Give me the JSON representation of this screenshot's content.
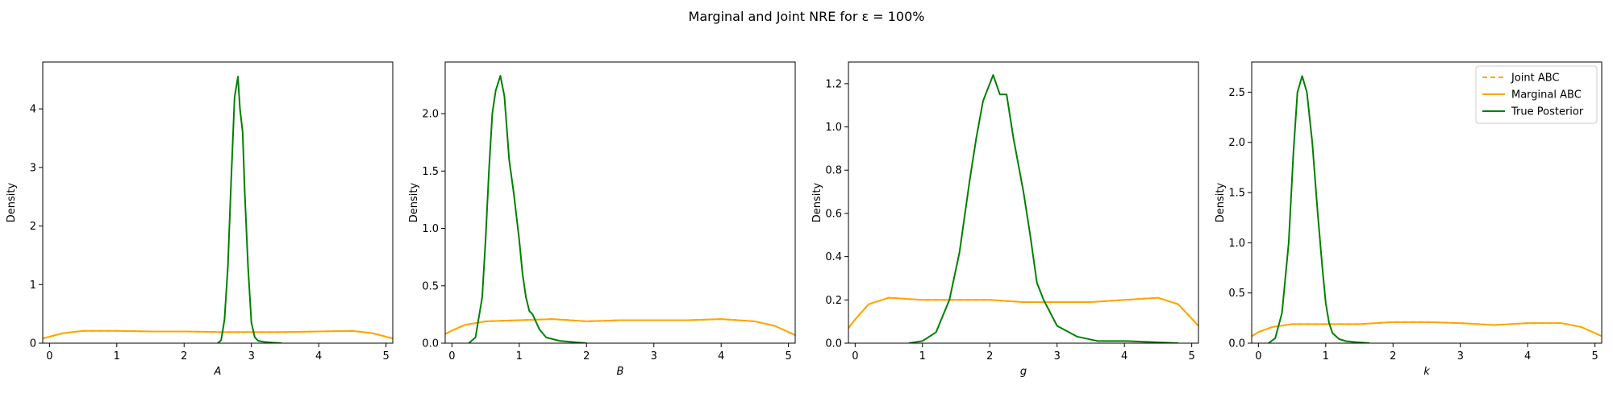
{
  "figure": {
    "title": "Marginal and Joint NRE for ε =  100%"
  },
  "legend": {
    "placement": "top-right of last panel",
    "entries": [
      {
        "label": "Joint ABC",
        "color": "#ffa500",
        "style": "dashed"
      },
      {
        "label": "Marginal ABC",
        "color": "#ffa500",
        "style": "solid"
      },
      {
        "label": "True Posterior",
        "color": "#008000",
        "style": "solid"
      }
    ]
  },
  "chart_data": [
    {
      "type": "line",
      "xlabel": "A",
      "ylabel": "Density",
      "xlim": [
        -0.1,
        5.1
      ],
      "ylim": [
        0,
        4.8
      ],
      "xticks": [
        "0",
        "1",
        "2",
        "3",
        "4",
        "5"
      ],
      "yticks": [
        "0",
        "1",
        "2",
        "3",
        "4"
      ],
      "series": [
        {
          "name": "Marginal ABC",
          "color": "#ffa500",
          "x": [
            -0.1,
            0,
            0.2,
            0.5,
            1,
            1.5,
            2,
            2.5,
            3,
            3.5,
            4,
            4.5,
            4.8,
            5.1
          ],
          "y": [
            0.08,
            0.11,
            0.17,
            0.21,
            0.21,
            0.2,
            0.2,
            0.19,
            0.19,
            0.19,
            0.2,
            0.21,
            0.17,
            0.08
          ]
        },
        {
          "name": "Joint ABC",
          "color": "#ffa500",
          "dashed": true,
          "x": [
            -0.1,
            0,
            0.2,
            0.5,
            1,
            1.5,
            2,
            2.5,
            3,
            3.5,
            4,
            4.5,
            4.8,
            5.1
          ],
          "y": [
            0.08,
            0.11,
            0.17,
            0.21,
            0.21,
            0.2,
            0.2,
            0.19,
            0.19,
            0.19,
            0.2,
            0.21,
            0.17,
            0.08
          ]
        },
        {
          "name": "True Posterior",
          "color": "#008000",
          "x": [
            2.5,
            2.55,
            2.6,
            2.65,
            2.7,
            2.75,
            2.8,
            2.83,
            2.87,
            2.9,
            2.95,
            3.0,
            3.05,
            3.1,
            3.2,
            3.3,
            3.45
          ],
          "y": [
            0,
            0.05,
            0.4,
            1.3,
            2.8,
            4.2,
            4.55,
            4.0,
            3.6,
            2.6,
            1.3,
            0.35,
            0.1,
            0.04,
            0.02,
            0.01,
            0
          ]
        }
      ]
    },
    {
      "type": "line",
      "xlabel": "B",
      "ylabel": "Density",
      "xlim": [
        -0.1,
        5.1
      ],
      "ylim": [
        0,
        2.45
      ],
      "xticks": [
        "0",
        "1",
        "2",
        "3",
        "4",
        "5"
      ],
      "yticks": [
        "0.0",
        "0.5",
        "1.0",
        "1.5",
        "2.0"
      ],
      "series": [
        {
          "name": "Marginal ABC",
          "color": "#ffa500",
          "x": [
            -0.1,
            0,
            0.2,
            0.5,
            1,
            1.5,
            2,
            2.5,
            3,
            3.5,
            4,
            4.5,
            4.8,
            5.1
          ],
          "y": [
            0.08,
            0.11,
            0.16,
            0.19,
            0.2,
            0.21,
            0.19,
            0.2,
            0.2,
            0.2,
            0.21,
            0.19,
            0.15,
            0.07
          ]
        },
        {
          "name": "Joint ABC",
          "color": "#ffa500",
          "dashed": true,
          "x": [
            -0.1,
            0,
            0.2,
            0.5,
            1,
            1.5,
            2,
            2.5,
            3,
            3.5,
            4,
            4.5,
            4.8,
            5.1
          ],
          "y": [
            0.08,
            0.11,
            0.16,
            0.19,
            0.2,
            0.21,
            0.19,
            0.2,
            0.2,
            0.2,
            0.21,
            0.19,
            0.15,
            0.07
          ]
        },
        {
          "name": "True Posterior",
          "color": "#008000",
          "x": [
            0.25,
            0.35,
            0.45,
            0.5,
            0.55,
            0.6,
            0.65,
            0.72,
            0.78,
            0.85,
            0.92,
            1.0,
            1.05,
            1.1,
            1.15,
            1.2,
            1.3,
            1.4,
            1.6,
            1.8,
            2.0
          ],
          "y": [
            0,
            0.05,
            0.4,
            0.9,
            1.5,
            2.0,
            2.2,
            2.33,
            2.15,
            1.6,
            1.3,
            0.9,
            0.6,
            0.4,
            0.28,
            0.25,
            0.12,
            0.05,
            0.02,
            0.01,
            0
          ]
        }
      ]
    },
    {
      "type": "line",
      "xlabel": "g",
      "ylabel": "Density",
      "xlim": [
        -0.1,
        5.1
      ],
      "ylim": [
        0,
        1.3
      ],
      "xticks": [
        "0",
        "1",
        "2",
        "3",
        "4",
        "5"
      ],
      "yticks": [
        "0.0",
        "0.2",
        "0.4",
        "0.6",
        "0.8",
        "1.0",
        "1.2"
      ],
      "series": [
        {
          "name": "Marginal ABC",
          "color": "#ffa500",
          "x": [
            -0.1,
            0,
            0.2,
            0.5,
            1,
            1.5,
            2,
            2.5,
            3,
            3.5,
            4,
            4.5,
            4.8,
            5.1
          ],
          "y": [
            0.07,
            0.11,
            0.18,
            0.21,
            0.2,
            0.2,
            0.2,
            0.19,
            0.19,
            0.19,
            0.2,
            0.21,
            0.18,
            0.08
          ]
        },
        {
          "name": "Joint ABC",
          "color": "#ffa500",
          "dashed": true,
          "x": [
            -0.1,
            0,
            0.2,
            0.5,
            1,
            1.5,
            2,
            2.5,
            3,
            3.5,
            4,
            4.5,
            4.8,
            5.1
          ],
          "y": [
            0.07,
            0.11,
            0.18,
            0.21,
            0.2,
            0.2,
            0.2,
            0.19,
            0.19,
            0.19,
            0.2,
            0.21,
            0.18,
            0.08
          ]
        },
        {
          "name": "True Posterior",
          "color": "#008000",
          "x": [
            0.8,
            1.0,
            1.2,
            1.4,
            1.55,
            1.7,
            1.8,
            1.9,
            2.0,
            2.05,
            2.15,
            2.25,
            2.35,
            2.5,
            2.6,
            2.7,
            2.8,
            3.0,
            3.3,
            3.6,
            4.0,
            4.8
          ],
          "y": [
            0,
            0.01,
            0.05,
            0.2,
            0.42,
            0.75,
            0.95,
            1.12,
            1.2,
            1.24,
            1.15,
            1.15,
            0.95,
            0.7,
            0.5,
            0.28,
            0.2,
            0.08,
            0.03,
            0.01,
            0.01,
            0
          ]
        }
      ]
    },
    {
      "type": "line",
      "xlabel": "k",
      "ylabel": "Density",
      "xlim": [
        -0.1,
        5.1
      ],
      "ylim": [
        0,
        2.8
      ],
      "xticks": [
        "0",
        "1",
        "2",
        "3",
        "4",
        "5"
      ],
      "yticks": [
        "0.0",
        "0.5",
        "1.0",
        "1.5",
        "2.0",
        "2.5"
      ],
      "series": [
        {
          "name": "Marginal ABC",
          "color": "#ffa500",
          "x": [
            -0.1,
            0,
            0.2,
            0.5,
            1,
            1.5,
            2,
            2.5,
            3,
            3.5,
            4,
            4.5,
            4.8,
            5.1
          ],
          "y": [
            0.07,
            0.11,
            0.16,
            0.19,
            0.19,
            0.19,
            0.21,
            0.21,
            0.2,
            0.18,
            0.2,
            0.2,
            0.16,
            0.07
          ]
        },
        {
          "name": "Joint ABC",
          "color": "#ffa500",
          "dashed": true,
          "x": [
            -0.1,
            0,
            0.2,
            0.5,
            1,
            1.5,
            2,
            2.5,
            3,
            3.5,
            4,
            4.5,
            4.8,
            5.1
          ],
          "y": [
            0.07,
            0.11,
            0.16,
            0.19,
            0.19,
            0.19,
            0.21,
            0.21,
            0.2,
            0.18,
            0.2,
            0.2,
            0.16,
            0.07
          ]
        },
        {
          "name": "True Posterior",
          "color": "#008000",
          "x": [
            0.15,
            0.25,
            0.35,
            0.45,
            0.52,
            0.58,
            0.65,
            0.72,
            0.8,
            0.88,
            0.95,
            1.0,
            1.05,
            1.1,
            1.2,
            1.3,
            1.45,
            1.65
          ],
          "y": [
            0,
            0.05,
            0.3,
            1.0,
            1.9,
            2.5,
            2.66,
            2.5,
            2.0,
            1.3,
            0.75,
            0.4,
            0.2,
            0.1,
            0.04,
            0.02,
            0.01,
            0
          ]
        }
      ]
    }
  ]
}
